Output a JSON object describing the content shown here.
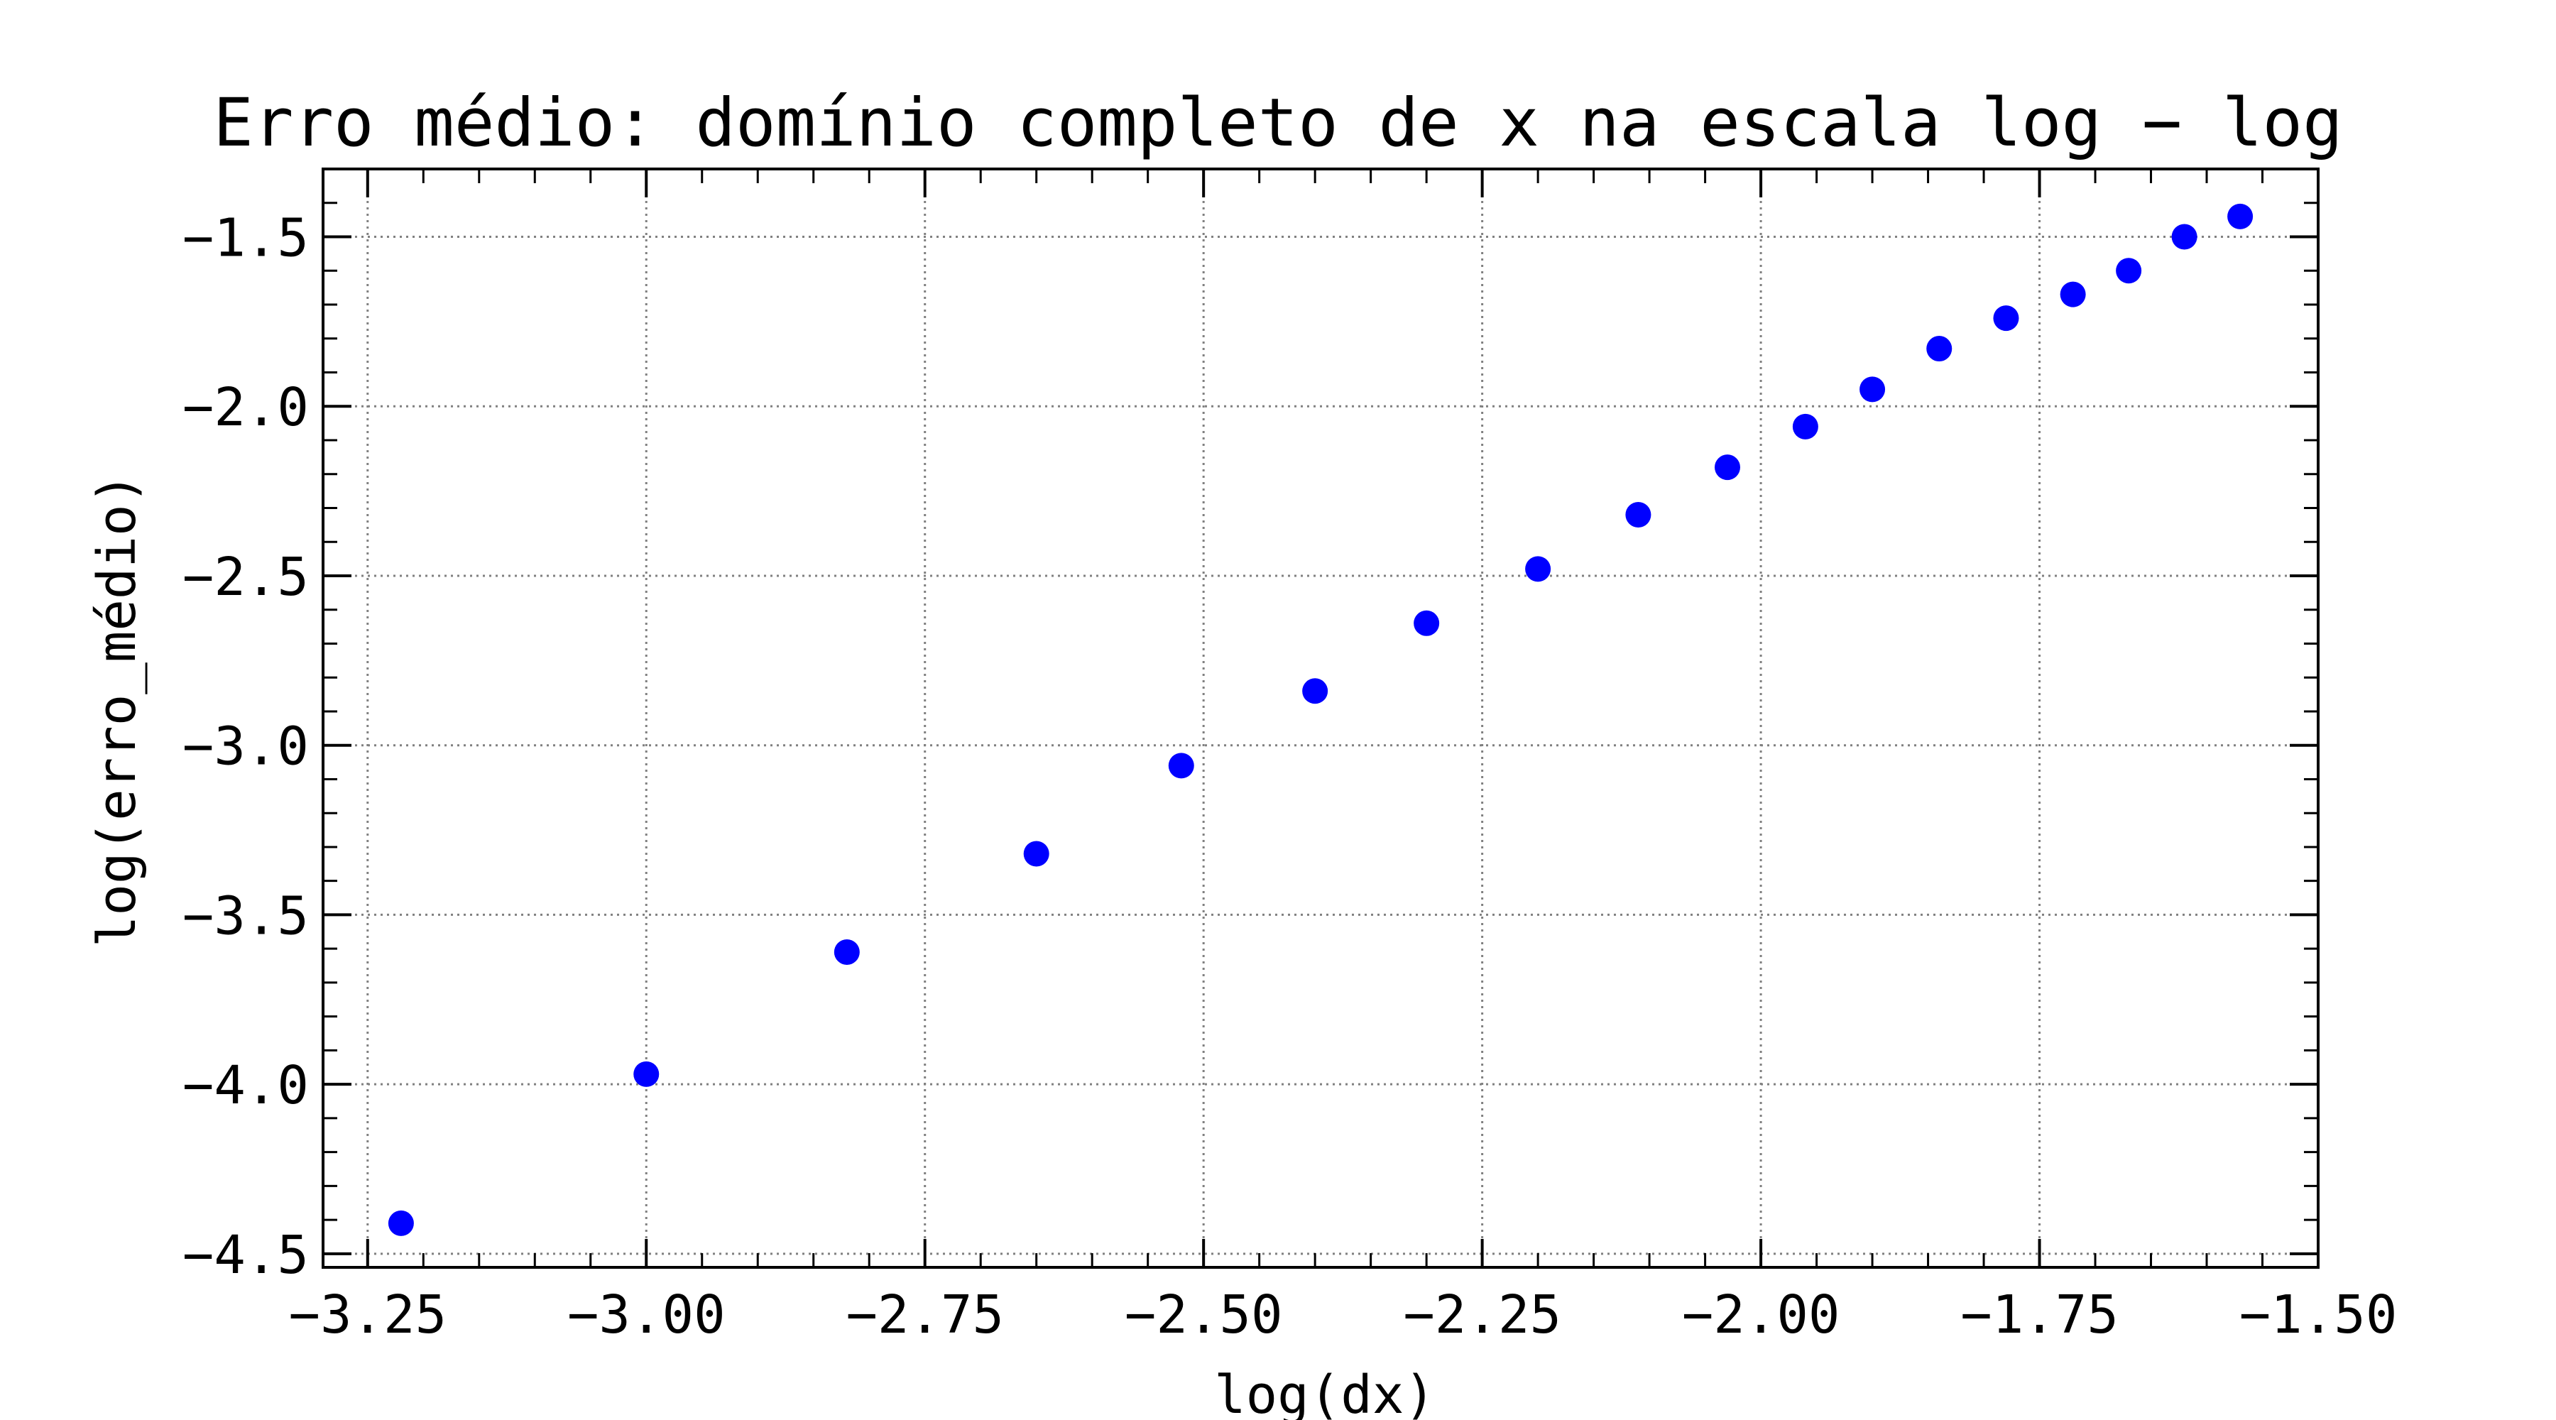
{
  "chart_data": {
    "type": "scatter",
    "title": "Erro médio: domínio completo de x na escala log − log",
    "xlabel": "log(dx)",
    "ylabel": "log(erro_médio)",
    "xlim": [
      -3.29,
      -1.5
    ],
    "ylim": [
      -4.54,
      -1.3
    ],
    "xticks": [
      -3.25,
      -3.0,
      -2.75,
      -2.5,
      -2.25,
      -2.0,
      -1.75,
      -1.5
    ],
    "xtick_labels": [
      "−3.25",
      "−3.00",
      "−2.75",
      "−2.50",
      "−2.25",
      "−2.00",
      "−1.75",
      "−1.50"
    ],
    "yticks": [
      -4.5,
      -4.0,
      -3.5,
      -3.0,
      -2.5,
      -2.0,
      -1.5
    ],
    "ytick_labels": [
      "−4.5",
      "−4.0",
      "−3.5",
      "−3.0",
      "−2.5",
      "−2.0",
      "−1.5"
    ],
    "grid": true,
    "marker_color": "#0000ff",
    "series": [
      {
        "x": [
          -3.22,
          -3.0,
          -2.82,
          -2.65,
          -2.52,
          -2.4,
          -2.3,
          -2.2,
          -2.11,
          -2.03,
          -1.96,
          -1.9,
          -1.84,
          -1.78,
          -1.72,
          -1.67,
          -1.62,
          -1.57
        ],
        "y": [
          -4.41,
          -3.97,
          -3.61,
          -3.32,
          -3.06,
          -2.84,
          -2.64,
          -2.48,
          -2.32,
          -2.18,
          -2.06,
          -1.95,
          -1.83,
          -1.74,
          -1.67,
          -1.6,
          -1.5,
          -1.44
        ]
      }
    ]
  }
}
